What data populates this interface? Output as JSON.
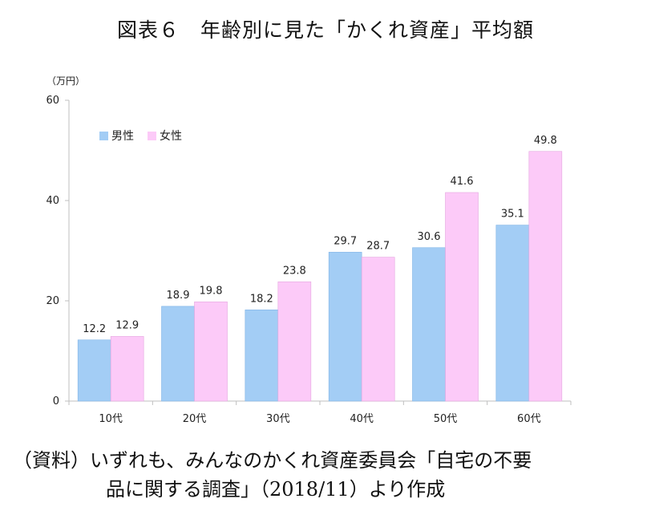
{
  "title": "図表６　年齢別に見た「かくれ資産」平均額",
  "source_line1": "（資料）いずれも、みんなのかくれ資産委員会「自宅の不要",
  "source_line2": "品に関する調査」（2018/11）より作成",
  "chart_data": {
    "type": "bar",
    "unit_label": "（万円）",
    "categories": [
      "10代",
      "20代",
      "30代",
      "40代",
      "50代",
      "60代"
    ],
    "series": [
      {
        "name": "男性",
        "color": "#a3cdf5",
        "values": [
          12.2,
          18.9,
          18.2,
          29.7,
          30.6,
          35.1
        ]
      },
      {
        "name": "女性",
        "color": "#fccaf8",
        "values": [
          12.9,
          19.8,
          23.8,
          28.7,
          41.6,
          49.8
        ]
      }
    ],
    "ylim": [
      0,
      60
    ],
    "yticks": [
      0,
      20,
      40,
      60
    ],
    "legend_position": "top-left",
    "grid": false
  }
}
